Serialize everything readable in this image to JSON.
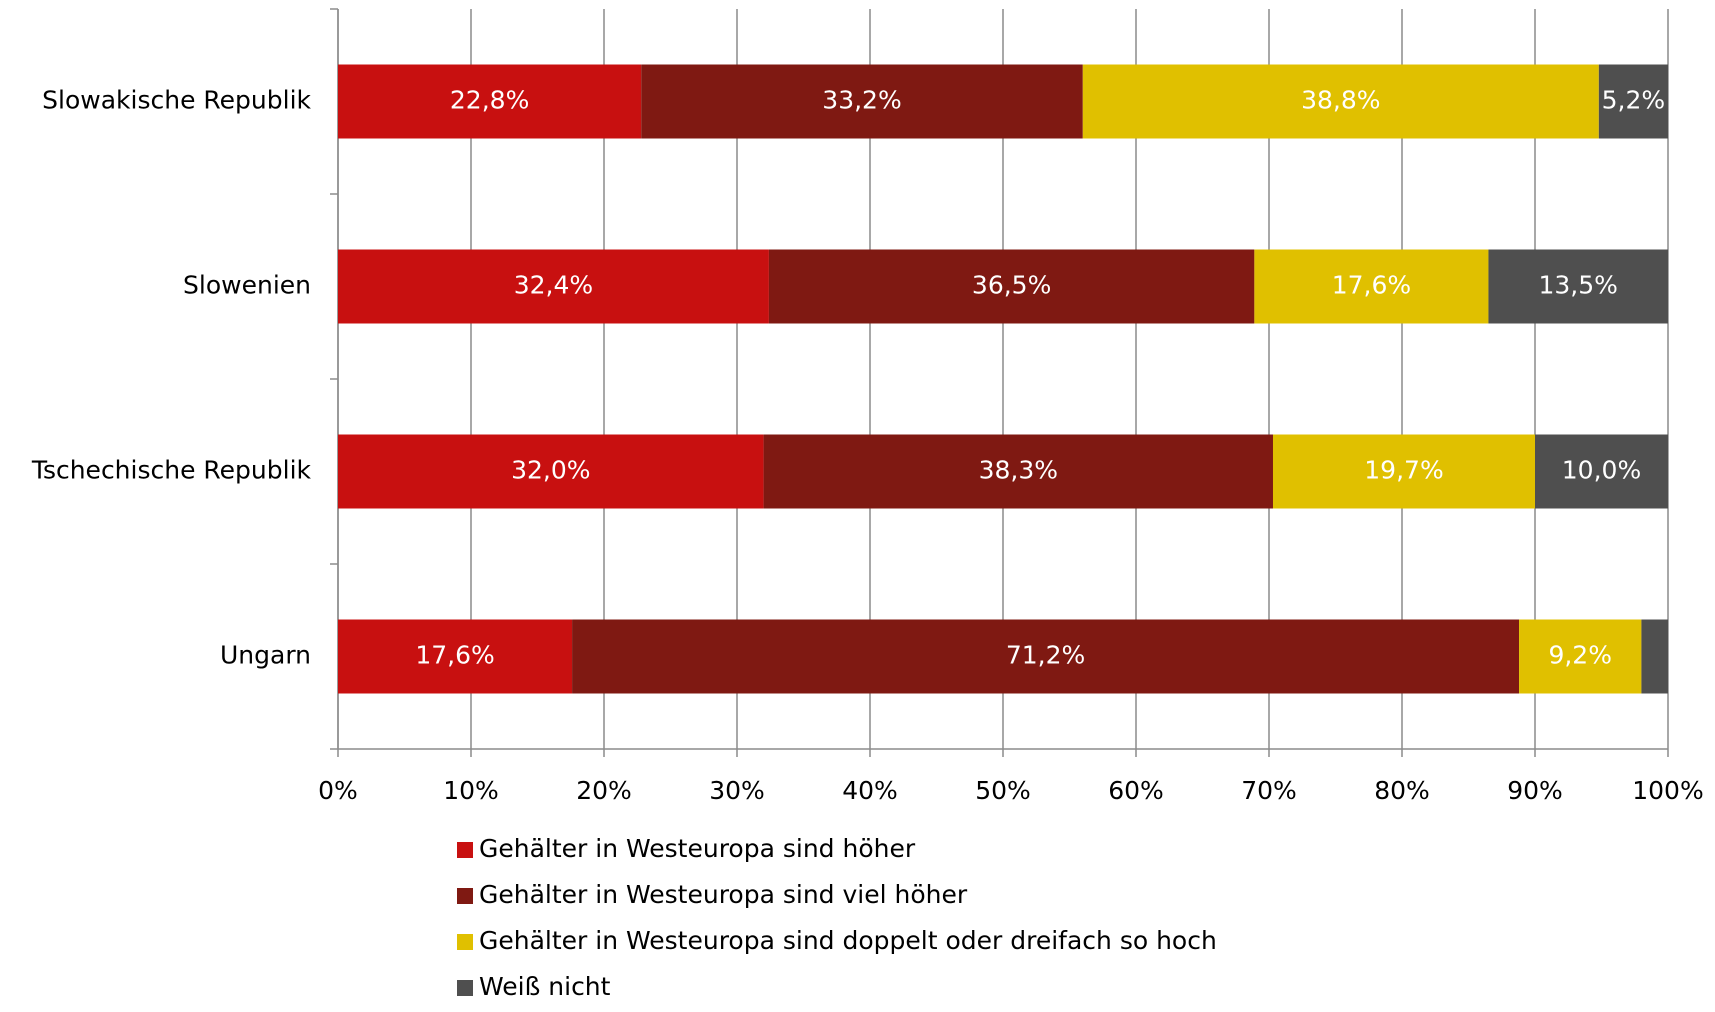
{
  "chart_data": {
    "type": "stacked_barh",
    "categories": [
      "Slowakische Republik",
      "Slowenien",
      "Tschechische Republik",
      "Ungarn"
    ],
    "series": [
      {
        "name": "Gehälter in Westeuropa sind höher",
        "color": "#c81010",
        "values": [
          22.8,
          32.4,
          32.0,
          17.6
        ],
        "value_labels": [
          "22,8%",
          "32,4%",
          "32,0%",
          "17,6%"
        ]
      },
      {
        "name": "Gehälter in Westeuropa sind viel höher",
        "color": "#7f1912",
        "values": [
          33.2,
          36.5,
          38.3,
          71.2
        ],
        "value_labels": [
          "33,2%",
          "36,5%",
          "38,3%",
          "71,2%"
        ]
      },
      {
        "name": "Gehälter in Westeuropa sind doppelt oder dreifach so hoch",
        "color": "#e0c000",
        "values": [
          38.8,
          17.6,
          19.7,
          9.2
        ],
        "value_labels": [
          "38,8%",
          "17,6%",
          "19,7%",
          "9,2%"
        ]
      },
      {
        "name": "Weiß nicht",
        "color": "#4f4f4f",
        "values": [
          5.2,
          13.5,
          10.0,
          2.0
        ],
        "value_labels": [
          "5,2%",
          "13,5%",
          "10,0%",
          null
        ]
      }
    ],
    "xlim": [
      0,
      100
    ],
    "xticks": [
      {
        "value": 0,
        "label": "0%"
      },
      {
        "value": 10,
        "label": "10%"
      },
      {
        "value": 20,
        "label": "20%"
      },
      {
        "value": 30,
        "label": "30%"
      },
      {
        "value": 40,
        "label": "40%"
      },
      {
        "value": 50,
        "label": "50%"
      },
      {
        "value": 60,
        "label": "60%"
      },
      {
        "value": 70,
        "label": "70%"
      },
      {
        "value": 80,
        "label": "80%"
      },
      {
        "value": 90,
        "label": "90%"
      },
      {
        "value": 100,
        "label": "100%"
      }
    ],
    "grid": true,
    "legend": "bottom"
  }
}
